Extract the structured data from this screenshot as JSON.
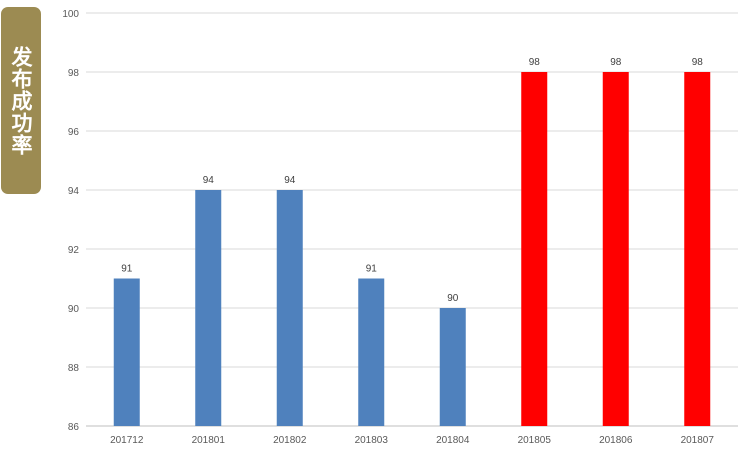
{
  "chart_data": {
    "type": "bar",
    "title": "",
    "xlabel": "",
    "ylabel": "发布成功率",
    "categories": [
      "201712",
      "201801",
      "201802",
      "201803",
      "201804",
      "201805",
      "201806",
      "201807"
    ],
    "values": [
      91,
      94,
      94,
      91,
      90,
      98,
      98,
      98
    ],
    "bar_colors": [
      "#4f81bd",
      "#4f81bd",
      "#4f81bd",
      "#4f81bd",
      "#4f81bd",
      "#ff0000",
      "#ff0000",
      "#ff0000"
    ],
    "ylim": [
      86,
      100
    ],
    "yticks": [
      86,
      88,
      90,
      92,
      94,
      96,
      98,
      100
    ],
    "grid": true,
    "data_labels": true,
    "colors": {
      "ylabel_box": "#9c8b52",
      "grid": "#d9d9d9",
      "blue": "#4f81bd",
      "red": "#ff0000"
    }
  }
}
